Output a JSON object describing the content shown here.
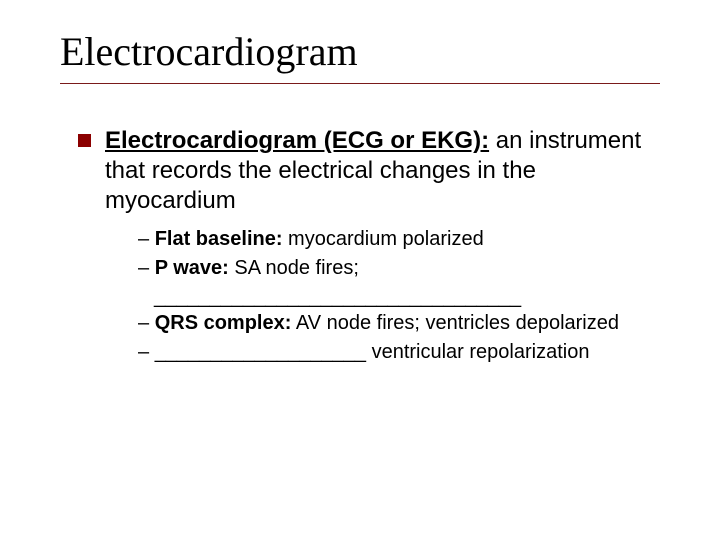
{
  "title": "Electrocardiogram",
  "main": {
    "term": "Electrocardiogram (ECG or EKG):",
    "definition": "  an instrument that records the electrical changes in the myocardium"
  },
  "subitems": [
    {
      "dash": "– ",
      "label": "Flat baseline:",
      "text": "  myocardium polarized"
    },
    {
      "dash": "– ",
      "label": "P wave:",
      "text": " SA node fires;"
    },
    {
      "dash": "",
      "label": "",
      "text": "_________________________________"
    },
    {
      "dash": "– ",
      "label": "QRS complex:",
      "text": " AV node fires; ventricles depolarized"
    },
    {
      "dash": "– ",
      "label": "",
      "text": "___________________ ventricular repolarization"
    }
  ],
  "colors": {
    "bullet": "#8b0000",
    "rule": "#7a1a1a",
    "text": "#000000",
    "background": "#ffffff"
  },
  "typography": {
    "title_fontsize": 40,
    "title_family": "Times New Roman",
    "body_fontsize": 24,
    "sub_fontsize": 20,
    "body_family": "Arial"
  }
}
